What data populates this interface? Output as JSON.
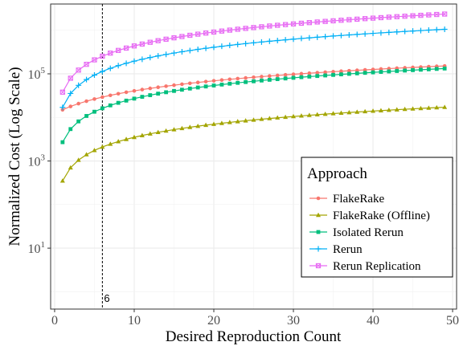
{
  "chart_data": {
    "type": "line",
    "xlabel": "Desired Reproduction Count",
    "ylabel": "Normalized Cost (Log Scale)",
    "y_scale": "log10",
    "xlim": [
      -0.5,
      50.5
    ],
    "ylim": [
      0.4,
      4000000
    ],
    "x_ticks": [
      0,
      10,
      20,
      30,
      40,
      50
    ],
    "x_tick_labels": [
      "0",
      "10",
      "20",
      "30",
      "40",
      "50"
    ],
    "y_ticks": [
      10,
      1000,
      100000
    ],
    "y_tick_base": "10",
    "y_tick_exponents": [
      "1",
      "3",
      "5"
    ],
    "grid": true,
    "legend": {
      "title": "Approach",
      "position": "bottom-right"
    },
    "vline": {
      "x": 6,
      "label": "6"
    },
    "x": [
      1,
      2,
      3,
      4,
      5,
      6,
      7,
      8,
      9,
      10,
      11,
      12,
      13,
      14,
      15,
      16,
      17,
      18,
      19,
      20,
      21,
      22,
      23,
      24,
      25,
      26,
      27,
      28,
      29,
      30,
      31,
      32,
      33,
      34,
      35,
      36,
      37,
      38,
      39,
      40,
      41,
      42,
      43,
      44,
      45,
      46,
      47,
      48,
      49
    ],
    "series": [
      {
        "name": "FlakeRake",
        "color": "#F8766D",
        "marker": "circle",
        "y0": 15000,
        "slope": 0.19,
        "power": 1.0
      },
      {
        "name": "FlakeRake (Offline)",
        "color": "#A3A500",
        "marker": "triangle",
        "y0": 350,
        "slope": 1.0,
        "power": 1.0
      },
      {
        "name": "Isolated Rerun",
        "color": "#00BF7D",
        "marker": "square",
        "y0": 2700,
        "slope": 1.0,
        "power": 1.0
      },
      {
        "name": "Rerun",
        "color": "#00B0F6",
        "marker": "plus",
        "y0": 17000,
        "slope": 1.0,
        "power": 1.06
      },
      {
        "name": "Rerun Replication",
        "color": "#E76BF3",
        "marker": "square-cross",
        "y0": 38000,
        "slope": 1.0,
        "power": 1.06
      }
    ]
  }
}
